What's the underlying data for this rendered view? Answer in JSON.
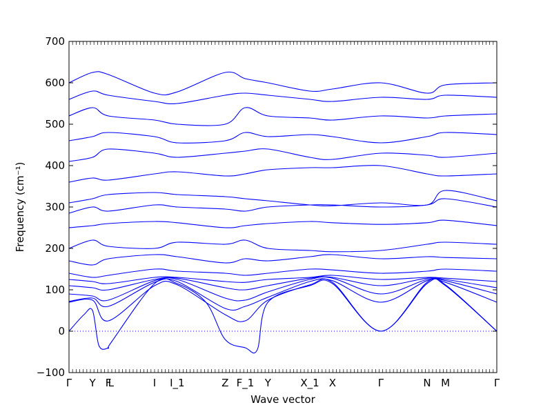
{
  "chart_data": {
    "type": "line",
    "xlabel": "Wave vector",
    "ylabel": "Frequency (cm⁻¹)",
    "ylim": [
      -100,
      700
    ],
    "y_ticks": [
      -100,
      0,
      100,
      200,
      300,
      400,
      500,
      600,
      700
    ],
    "x_range": [
      0,
      1
    ],
    "x_ticks": [
      {
        "label": "Γ",
        "x": 0.0
      },
      {
        "label": "Y",
        "x": 0.055
      },
      {
        "label": "F",
        "x": 0.092
      },
      {
        "label": "L",
        "x": 0.098
      },
      {
        "label": "I",
        "x": 0.2
      },
      {
        "label": "I_1",
        "x": 0.253
      },
      {
        "label": "Z",
        "x": 0.365
      },
      {
        "label": "F_1",
        "x": 0.412
      },
      {
        "label": "Y",
        "x": 0.465
      },
      {
        "label": "X_1",
        "x": 0.563
      },
      {
        "label": "X",
        "x": 0.616
      },
      {
        "label": "Γ",
        "x": 0.729
      },
      {
        "label": "N",
        "x": 0.837
      },
      {
        "label": "M",
        "x": 0.88
      },
      {
        "label": "Γ",
        "x": 1.0
      }
    ],
    "zero_line": {
      "y": 0,
      "style": "dotted"
    },
    "series_color": "#0000ff",
    "series": [
      {
        "x": [
          0.0,
          0.035,
          0.055,
          0.07,
          0.092,
          0.1,
          0.2,
          0.253,
          0.32,
          0.365,
          0.412,
          0.44,
          0.465,
          0.563,
          0.616,
          0.729,
          0.837,
          0.88,
          1.0
        ],
        "y": [
          0,
          40,
          50,
          -35,
          -40,
          -25,
          115,
          115,
          70,
          -20,
          -40,
          -45,
          70,
          110,
          115,
          0,
          115,
          110,
          0
        ]
      },
      {
        "x": [
          0.0,
          0.055,
          0.092,
          0.2,
          0.253,
          0.365,
          0.412,
          0.465,
          0.563,
          0.616,
          0.729,
          0.837,
          0.88,
          1.0
        ],
        "y": [
          70,
          75,
          25,
          110,
          112,
          40,
          25,
          75,
          112,
          118,
          0,
          118,
          112,
          0
        ]
      },
      {
        "x": [
          0.0,
          0.055,
          0.092,
          0.2,
          0.253,
          0.365,
          0.412,
          0.465,
          0.563,
          0.616,
          0.729,
          0.837,
          0.88,
          1.0
        ],
        "y": [
          72,
          80,
          60,
          118,
          120,
          55,
          60,
          82,
          120,
          122,
          70,
          122,
          118,
          70
        ]
      },
      {
        "x": [
          0.0,
          0.055,
          0.092,
          0.2,
          0.253,
          0.365,
          0.412,
          0.465,
          0.563,
          0.616,
          0.729,
          0.837,
          0.88,
          1.0
        ],
        "y": [
          90,
          85,
          75,
          122,
          125,
          80,
          75,
          95,
          125,
          128,
          90,
          125,
          122,
          90
        ]
      },
      {
        "x": [
          0.0,
          0.055,
          0.092,
          0.2,
          0.253,
          0.365,
          0.412,
          0.465,
          0.563,
          0.616,
          0.729,
          0.837,
          0.88,
          1.0
        ],
        "y": [
          110,
          105,
          100,
          125,
          128,
          105,
          100,
          110,
          128,
          130,
          110,
          128,
          125,
          105
        ]
      },
      {
        "x": [
          0.0,
          0.055,
          0.092,
          0.2,
          0.253,
          0.365,
          0.412,
          0.465,
          0.563,
          0.616,
          0.729,
          0.837,
          0.88,
          1.0
        ],
        "y": [
          125,
          120,
          115,
          130,
          130,
          120,
          118,
          125,
          130,
          135,
          125,
          130,
          128,
          120
        ]
      },
      {
        "x": [
          0.0,
          0.055,
          0.092,
          0.2,
          0.253,
          0.365,
          0.412,
          0.465,
          0.563,
          0.616,
          0.729,
          0.837,
          0.88,
          1.0
        ],
        "y": [
          140,
          130,
          135,
          150,
          145,
          140,
          135,
          140,
          150,
          148,
          140,
          145,
          150,
          145
        ]
      },
      {
        "x": [
          0.0,
          0.055,
          0.092,
          0.2,
          0.253,
          0.365,
          0.412,
          0.465,
          0.563,
          0.616,
          0.729,
          0.837,
          0.88,
          1.0
        ],
        "y": [
          170,
          160,
          175,
          185,
          180,
          165,
          175,
          170,
          180,
          185,
          175,
          180,
          178,
          175
        ]
      },
      {
        "x": [
          0.0,
          0.055,
          0.092,
          0.2,
          0.253,
          0.365,
          0.412,
          0.465,
          0.563,
          0.616,
          0.729,
          0.837,
          0.88,
          1.0
        ],
        "y": [
          200,
          220,
          205,
          200,
          215,
          210,
          220,
          200,
          195,
          192,
          195,
          210,
          215,
          210
        ]
      },
      {
        "x": [
          0.0,
          0.055,
          0.092,
          0.2,
          0.253,
          0.365,
          0.412,
          0.465,
          0.563,
          0.616,
          0.729,
          0.837,
          0.88,
          1.0
        ],
        "y": [
          250,
          255,
          260,
          265,
          262,
          250,
          255,
          260,
          265,
          262,
          258,
          262,
          268,
          255
        ]
      },
      {
        "x": [
          0.0,
          0.055,
          0.092,
          0.2,
          0.253,
          0.365,
          0.412,
          0.465,
          0.563,
          0.616,
          0.729,
          0.837,
          0.88,
          1.0
        ],
        "y": [
          285,
          300,
          290,
          305,
          300,
          295,
          290,
          300,
          305,
          305,
          300,
          305,
          320,
          300
        ]
      },
      {
        "x": [
          0.0,
          0.055,
          0.092,
          0.2,
          0.253,
          0.365,
          0.412,
          0.465,
          0.563,
          0.616,
          0.729,
          0.837,
          0.88,
          1.0
        ],
        "y": [
          310,
          320,
          330,
          335,
          330,
          325,
          320,
          315,
          305,
          303,
          310,
          305,
          340,
          315
        ]
      },
      {
        "x": [
          0.0,
          0.055,
          0.092,
          0.2,
          0.253,
          0.365,
          0.412,
          0.465,
          0.563,
          0.616,
          0.729,
          0.837,
          0.88,
          1.0
        ],
        "y": [
          360,
          370,
          365,
          380,
          385,
          375,
          380,
          390,
          395,
          395,
          400,
          380,
          375,
          380
        ]
      },
      {
        "x": [
          0.0,
          0.055,
          0.092,
          0.2,
          0.253,
          0.365,
          0.412,
          0.465,
          0.563,
          0.616,
          0.729,
          0.837,
          0.88,
          1.0
        ],
        "y": [
          410,
          420,
          440,
          430,
          420,
          430,
          435,
          440,
          420,
          415,
          430,
          425,
          420,
          430
        ]
      },
      {
        "x": [
          0.0,
          0.055,
          0.092,
          0.2,
          0.253,
          0.365,
          0.412,
          0.465,
          0.563,
          0.616,
          0.729,
          0.837,
          0.88,
          1.0
        ],
        "y": [
          460,
          470,
          480,
          470,
          455,
          460,
          480,
          470,
          475,
          470,
          455,
          470,
          480,
          475
        ]
      },
      {
        "x": [
          0.0,
          0.055,
          0.092,
          0.2,
          0.253,
          0.365,
          0.412,
          0.465,
          0.563,
          0.616,
          0.729,
          0.837,
          0.88,
          1.0
        ],
        "y": [
          520,
          540,
          520,
          510,
          500,
          500,
          540,
          520,
          515,
          510,
          520,
          515,
          520,
          525
        ]
      },
      {
        "x": [
          0.0,
          0.055,
          0.092,
          0.2,
          0.253,
          0.365,
          0.412,
          0.465,
          0.563,
          0.616,
          0.729,
          0.837,
          0.88,
          1.0
        ],
        "y": [
          560,
          580,
          570,
          555,
          550,
          570,
          575,
          570,
          560,
          555,
          565,
          560,
          570,
          565
        ]
      },
      {
        "x": [
          0.0,
          0.055,
          0.092,
          0.2,
          0.253,
          0.365,
          0.412,
          0.465,
          0.563,
          0.616,
          0.729,
          0.837,
          0.88,
          1.0
        ],
        "y": [
          600,
          625,
          620,
          575,
          578,
          625,
          610,
          600,
          580,
          585,
          600,
          575,
          595,
          600
        ]
      }
    ]
  }
}
